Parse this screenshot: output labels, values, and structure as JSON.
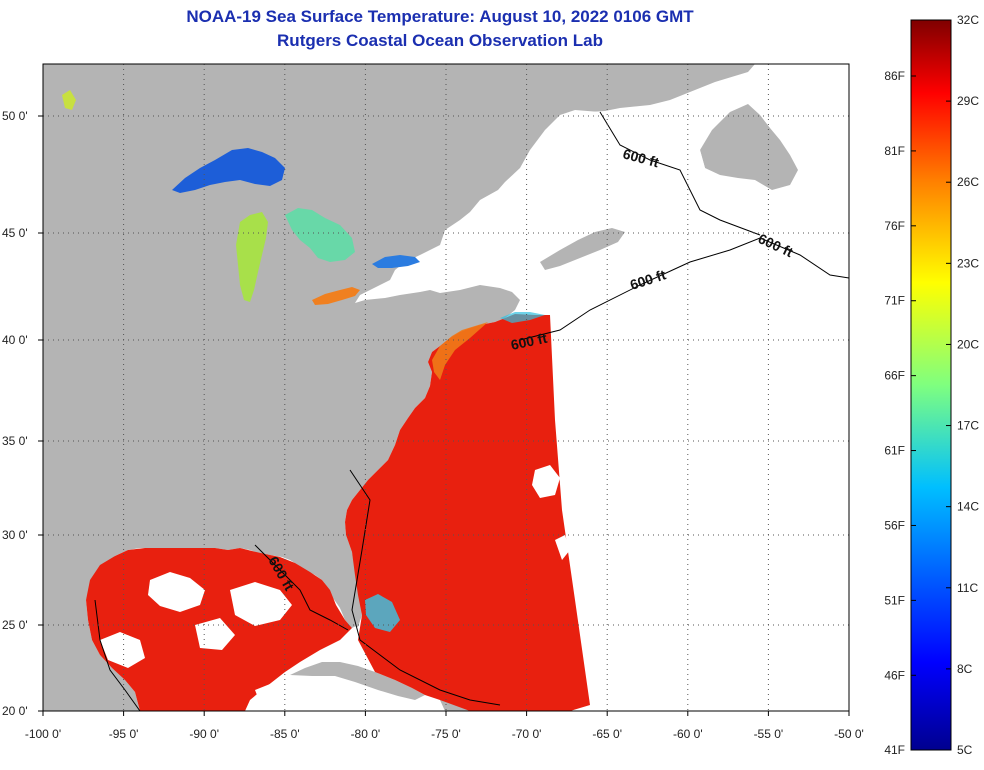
{
  "title": {
    "line1": "NOAA-19 Sea Surface Temperature:  August 10, 2022 0106 GMT",
    "line2": "Rutgers Coastal Ocean Observation Lab"
  },
  "map": {
    "lon_range": [
      -100,
      -50
    ],
    "lat_range": [
      20,
      52.2
    ],
    "lon_ticks": [
      {
        "value": -100,
        "label": "-100 0'"
      },
      {
        "value": -95,
        "label": "-95 0'"
      },
      {
        "value": -90,
        "label": "-90 0'"
      },
      {
        "value": -85,
        "label": "-85 0'"
      },
      {
        "value": -80,
        "label": "-80 0'"
      },
      {
        "value": -75,
        "label": "-75 0'"
      },
      {
        "value": -70,
        "label": "-70 0'"
      },
      {
        "value": -65,
        "label": "-65 0'"
      },
      {
        "value": -60,
        "label": "-60 0'"
      },
      {
        "value": -55,
        "label": "-55 0'"
      },
      {
        "value": -50,
        "label": "-50 0'"
      }
    ],
    "lat_ticks": [
      {
        "value": 20,
        "label": "20 0'"
      },
      {
        "value": 25,
        "label": "25 0'"
      },
      {
        "value": 30,
        "label": "30 0'"
      },
      {
        "value": 35,
        "label": "35 0'"
      },
      {
        "value": 40,
        "label": "40 0'"
      },
      {
        "value": 45,
        "label": "45 0'"
      },
      {
        "value": 50,
        "label": "50 0'"
      }
    ],
    "grid": "dotted",
    "land_color": "#b4b4b4",
    "no_data_color": "#ffffff",
    "warm_water_color": "#e8200f",
    "isobath_labels": [
      "600 ft",
      "600 ft",
      "600 ft",
      "600 ft",
      "600 ft"
    ]
  },
  "colorbar": {
    "celsius_labels": [
      "32C",
      "29C",
      "26C",
      "23C",
      "20C",
      "17C",
      "14C",
      "11C",
      "8C",
      "5C"
    ],
    "fahrenheit_labels": [
      "86F",
      "81F",
      "76F",
      "71F",
      "66F",
      "61F",
      "56F",
      "51F",
      "46F",
      "41F"
    ],
    "colors": [
      "#7f0000",
      "#ff0000",
      "#ff7f00",
      "#ffff00",
      "#7fff7f",
      "#00ffff",
      "#007fff",
      "#0000ff",
      "#00008f"
    ]
  }
}
